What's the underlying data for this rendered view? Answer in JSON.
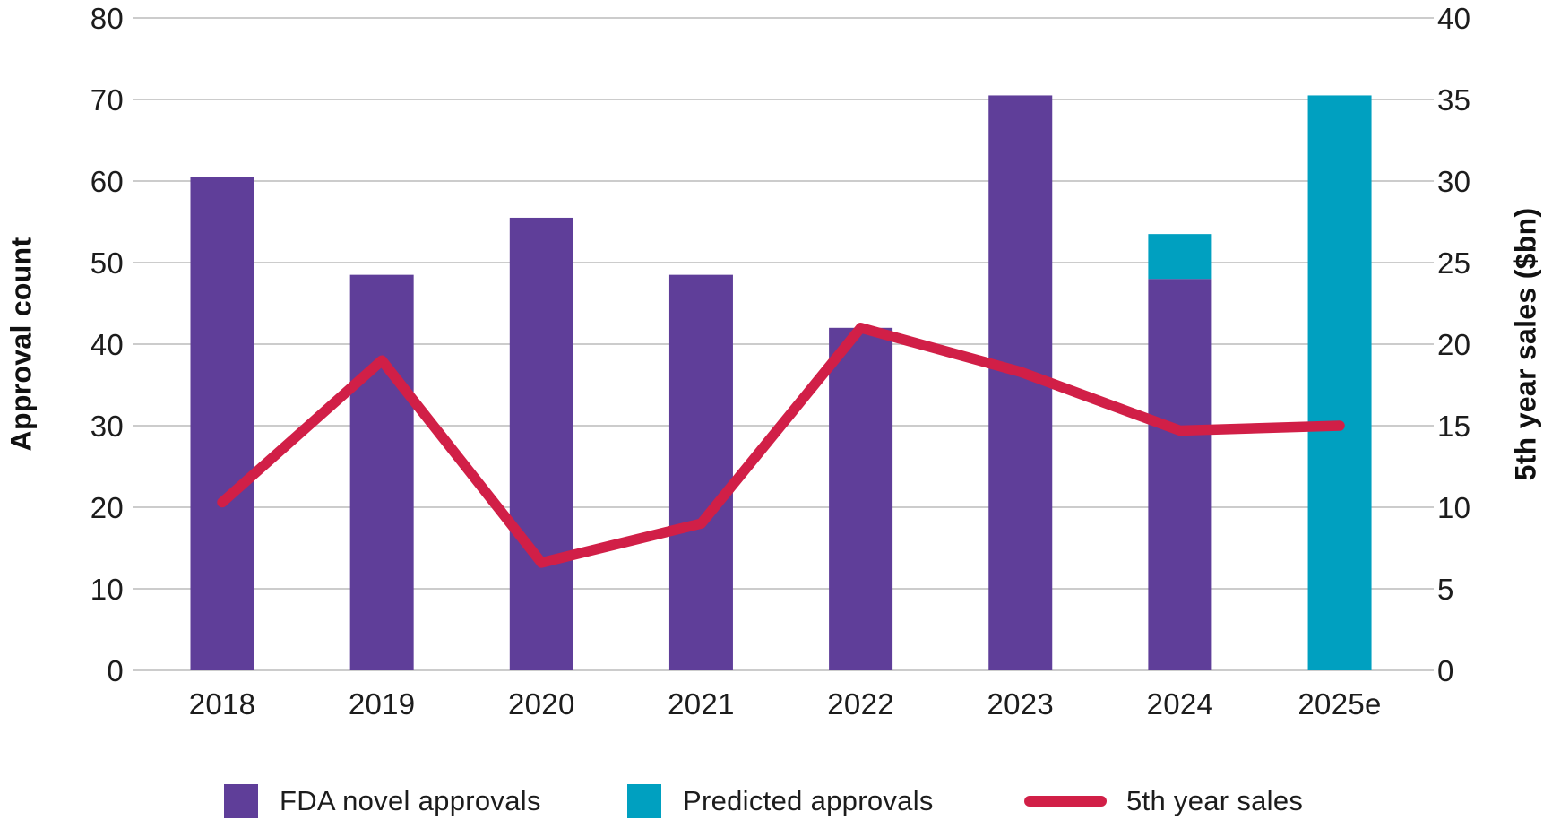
{
  "chart_data": {
    "type": "bar+line combo",
    "categories": [
      "2018",
      "2019",
      "2020",
      "2021",
      "2022",
      "2023",
      "2024",
      "2025e"
    ],
    "series": [
      {
        "name": "FDA novel approvals",
        "type": "bar",
        "axis": "left",
        "color": "#5f3e99",
        "values": [
          60.5,
          48.5,
          55.5,
          48.5,
          42,
          70.5,
          48,
          0
        ]
      },
      {
        "name": "Predicted approvals",
        "type": "bar",
        "axis": "left",
        "color": "#00a0c0",
        "stacked": true,
        "values": [
          0,
          0,
          0,
          0,
          0,
          0,
          5.5,
          70.5
        ]
      },
      {
        "name": "5th year sales",
        "type": "line",
        "axis": "right",
        "color": "#d11f47",
        "values": [
          10.3,
          19,
          6.6,
          9,
          21,
          18.3,
          14.7,
          15
        ]
      }
    ],
    "left_axis": {
      "label": "Approval count",
      "min": 0,
      "max": 80,
      "ticks": [
        0,
        10,
        20,
        30,
        40,
        50,
        60,
        70,
        80
      ]
    },
    "right_axis": {
      "label": "5th year sales ($bn)",
      "min": 0,
      "max": 40,
      "ticks": [
        0,
        5,
        10,
        15,
        20,
        25,
        30,
        35,
        40
      ]
    },
    "grid": true,
    "gridline_color": "#cccccc",
    "text_color": "#1c1c1c",
    "legend_position": "bottom"
  }
}
